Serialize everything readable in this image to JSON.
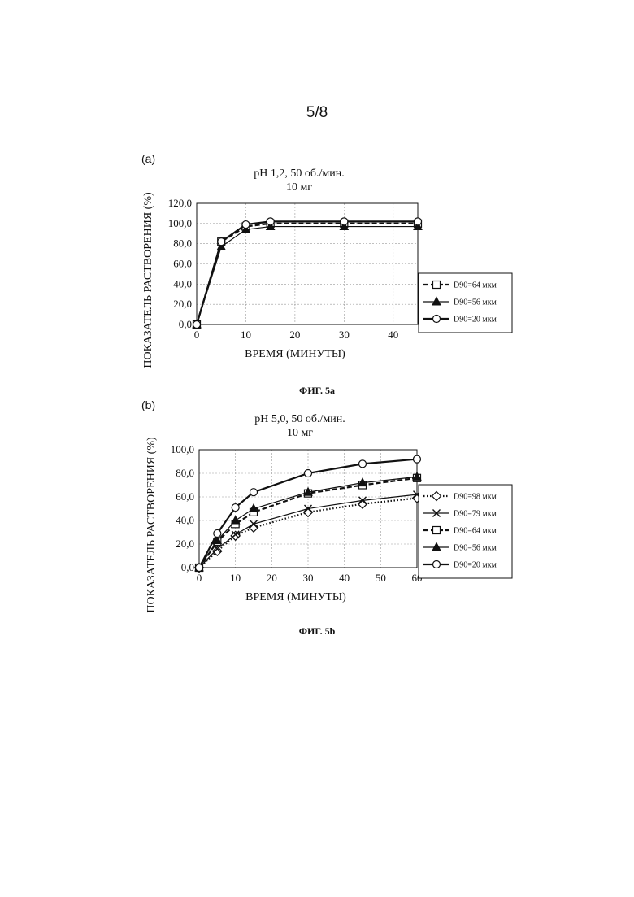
{
  "page": {
    "number": "5/8"
  },
  "figures": [
    {
      "panel": "(a)",
      "caption": "ФИГ. 5a"
    },
    {
      "panel": "(b)",
      "caption": "ФИГ. 5b"
    }
  ],
  "chart_data": [
    {
      "type": "line",
      "title": "pH 1,2, 50 об./мин.",
      "subtitle": "10 мг",
      "xlabel": "ВРЕМЯ (МИНУТЫ)",
      "ylabel": "ПОКАЗАТЕЛЬ РАСТВОРЕНИЯ (%)",
      "xlim": [
        0,
        45
      ],
      "ylim": [
        0,
        120
      ],
      "xticks": [
        0,
        10,
        20,
        30,
        40
      ],
      "yticks": [
        0,
        20,
        40,
        60,
        80,
        100,
        120
      ],
      "ytick_labels": [
        "0,0",
        "20,0",
        "40,0",
        "60,0",
        "80,0",
        "100,0",
        "120,0"
      ],
      "grid": true,
      "legend_position": "right",
      "series": [
        {
          "name": "D90=64 мкм",
          "marker": "square-open",
          "line": "dashed",
          "x": [
            0,
            5,
            10,
            15,
            30,
            45
          ],
          "values": [
            0,
            82,
            97,
            100,
            100,
            100
          ]
        },
        {
          "name": "D90=56 мкм",
          "marker": "triangle-filled",
          "line": "solid-thin",
          "x": [
            0,
            5,
            10,
            15,
            30,
            45
          ],
          "values": [
            0,
            77,
            94,
            97,
            97,
            97
          ]
        },
        {
          "name": "D90=20 мкм",
          "marker": "circle-open",
          "line": "solid-thick",
          "x": [
            0,
            5,
            10,
            15,
            30,
            45
          ],
          "values": [
            0,
            82,
            99,
            102,
            102,
            102
          ]
        }
      ]
    },
    {
      "type": "line",
      "title": "pH 5,0, 50 об./мин.",
      "subtitle": "10 мг",
      "xlabel": "ВРЕМЯ (МИНУТЫ)",
      "ylabel": "ПОКАЗАТЕЛЬ РАСТВОРЕНИЯ (%)",
      "xlim": [
        0,
        60
      ],
      "ylim": [
        0,
        100
      ],
      "xticks": [
        0,
        10,
        20,
        30,
        40,
        50,
        60
      ],
      "yticks": [
        0,
        20,
        40,
        60,
        80,
        100
      ],
      "ytick_labels": [
        "0,0",
        "20,0",
        "40,0",
        "60,0",
        "80,0",
        "100,0"
      ],
      "grid": true,
      "legend_position": "right",
      "series": [
        {
          "name": "D90=98 мкм",
          "marker": "diamond-open",
          "line": "dotted",
          "x": [
            0,
            5,
            10,
            15,
            30,
            45,
            60
          ],
          "values": [
            0,
            14,
            27,
            34,
            47,
            54,
            59
          ]
        },
        {
          "name": "D90=79 мкм",
          "marker": "x",
          "line": "solid-thin",
          "x": [
            0,
            5,
            10,
            15,
            30,
            45,
            60
          ],
          "values": [
            0,
            16,
            28,
            37,
            50,
            57,
            62
          ]
        },
        {
          "name": "D90=64 мкм",
          "marker": "square-open",
          "line": "dashed",
          "x": [
            0,
            5,
            10,
            15,
            30,
            45,
            60
          ],
          "values": [
            0,
            22,
            37,
            47,
            63,
            70,
            76
          ]
        },
        {
          "name": "D90=56 мкм",
          "marker": "triangle-filled",
          "line": "solid-thin",
          "x": [
            0,
            5,
            10,
            15,
            30,
            45,
            60
          ],
          "values": [
            0,
            23,
            40,
            50,
            64,
            72,
            77
          ]
        },
        {
          "name": "D90=20 мкм",
          "marker": "circle-open",
          "line": "solid-thick",
          "x": [
            0,
            5,
            10,
            15,
            30,
            45,
            60
          ],
          "values": [
            0,
            29,
            51,
            64,
            80,
            88,
            92
          ]
        }
      ]
    }
  ]
}
